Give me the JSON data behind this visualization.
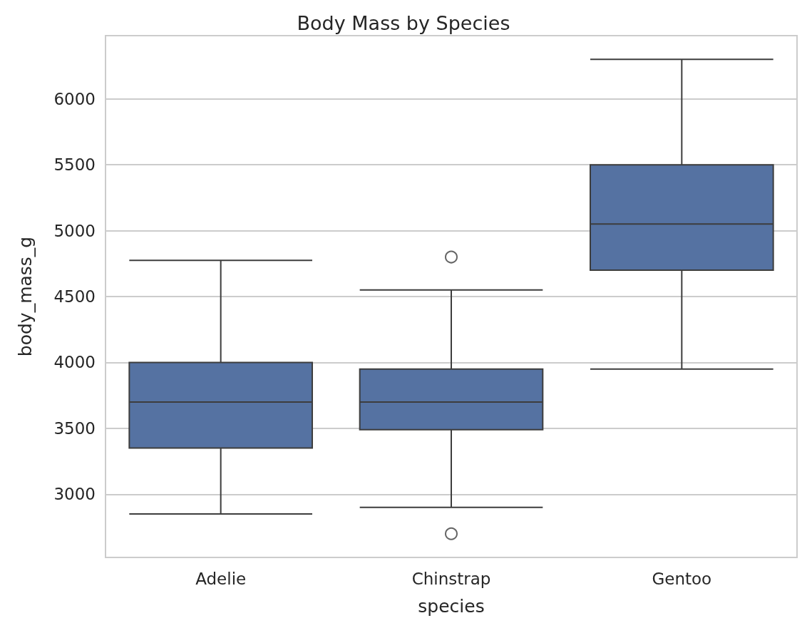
{
  "chart_data": {
    "type": "box",
    "title": "Body Mass by Species",
    "xlabel": "species",
    "ylabel": "body_mass_g",
    "categories": [
      "Adelie",
      "Chinstrap",
      "Gentoo"
    ],
    "color": "#5572a2",
    "boxes": [
      {
        "low": 2850,
        "q1": 3350,
        "median": 3700,
        "q3": 4000,
        "high": 4775
      },
      {
        "low": 2900,
        "q1": 3490,
        "median": 3700,
        "q3": 3950,
        "high": 4550,
        "outliers": [
          4800,
          2700
        ]
      },
      {
        "low": 3950,
        "q1": 4700,
        "median": 5050,
        "q3": 5500,
        "high": 6300
      }
    ],
    "ylim": [
      2520,
      6480
    ],
    "yticks": [
      3000,
      3500,
      4000,
      4500,
      5000,
      5500,
      6000
    ],
    "grid": "y"
  }
}
